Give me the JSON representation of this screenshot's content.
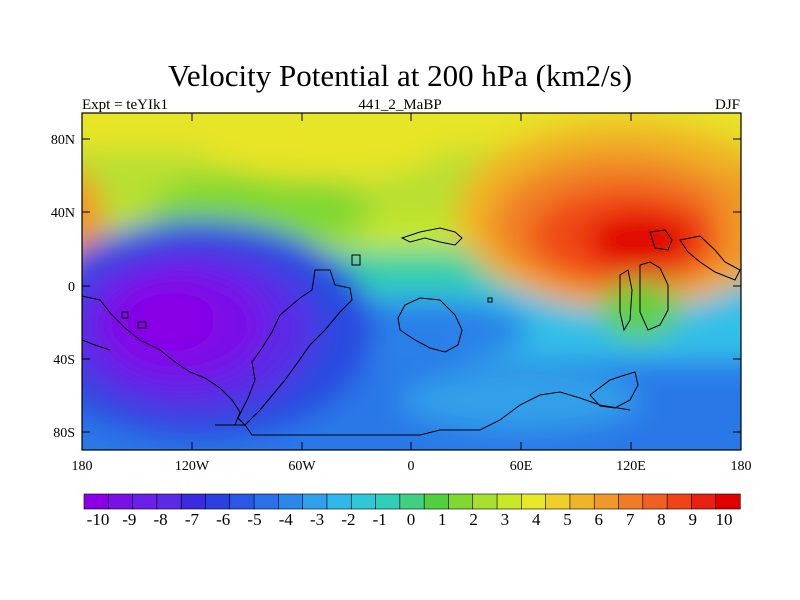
{
  "title": "Velocity Potential at 200 hPa (km2/s)",
  "subtitle_left": "Expt = teYIk1",
  "subtitle_center": "441_2_MaBP",
  "subtitle_right": "DJF",
  "y_ticks": [
    "80N",
    "40N",
    "0",
    "40S",
    "80S"
  ],
  "x_ticks": [
    "180",
    "120W",
    "60W",
    "0",
    "60E",
    "120E",
    "180"
  ],
  "colorbar": {
    "labels": [
      "-10",
      "-9",
      "-8",
      "-7",
      "-6",
      "-5",
      "-4",
      "-3",
      "-2",
      "-1",
      "0",
      "1",
      "2",
      "3",
      "4",
      "5",
      "6",
      "7",
      "8",
      "9",
      "10"
    ],
    "colors": [
      "#8a00e6",
      "#7a10e8",
      "#6a20e8",
      "#5a2ae6",
      "#3a2ae0",
      "#2a40e0",
      "#2a58e4",
      "#2a70e8",
      "#2a88ea",
      "#30a0ea",
      "#30b8e8",
      "#30c8d8",
      "#30d0b8",
      "#40d080",
      "#50d040",
      "#80d830",
      "#a8e030",
      "#c8e828",
      "#e8e828",
      "#f0d028",
      "#f0b428",
      "#f0982a",
      "#f07c28",
      "#f06020",
      "#f04418",
      "#e82010",
      "#e00000"
    ]
  },
  "chart_data": {
    "type": "heatmap",
    "title": "Velocity Potential at 200 hPa (km2/s)",
    "xlabel": "",
    "ylabel": "",
    "x_range": [
      -180,
      180
    ],
    "y_range": [
      -90,
      90
    ],
    "levels": [
      -10,
      -9,
      -8,
      -7,
      -6,
      -5,
      -4,
      -3,
      -2,
      -1,
      0,
      1,
      2,
      3,
      4,
      5,
      6,
      7,
      8,
      9,
      10
    ],
    "min_center": {
      "lon": -115,
      "lat": -25,
      "value": -10
    },
    "max_center": {
      "lon": 130,
      "lat": 30,
      "value": 10
    }
  }
}
